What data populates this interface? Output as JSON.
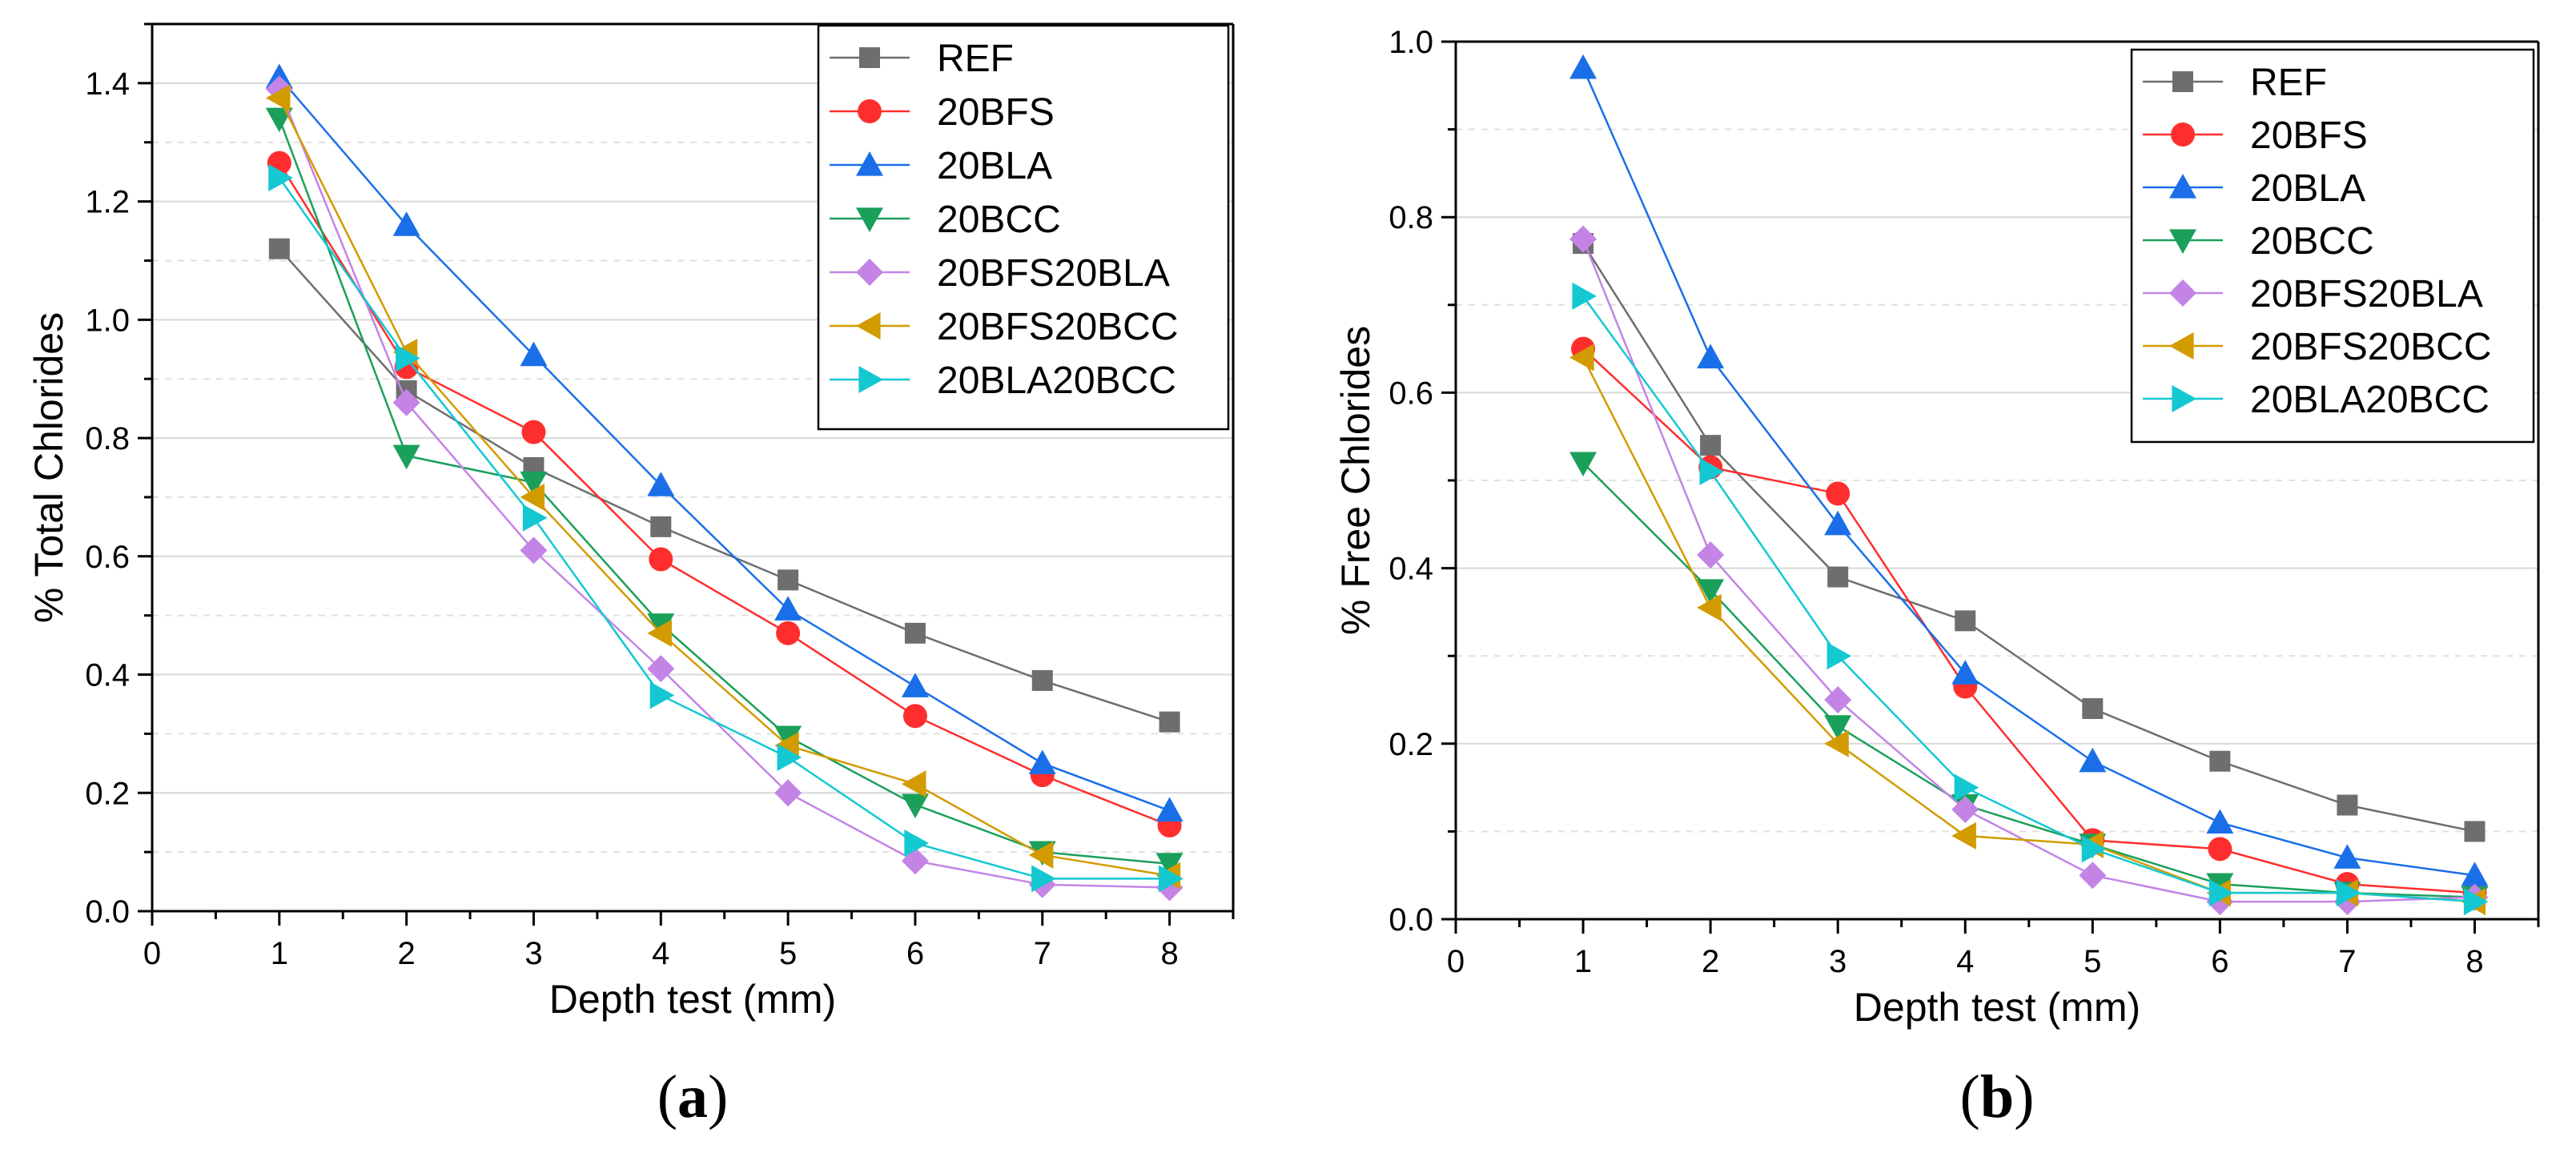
{
  "series_colors": {
    "REF": "#6e6e6e",
    "20BFS": "#ff2e2e",
    "20BLA": "#1a6fe8",
    "20BCC": "#1aa05a",
    "20BFS20BLA": "#c384e6",
    "20BFS20BCC": "#d29b00",
    "20BLA20BCC": "#14c8d2"
  },
  "series_markers": {
    "REF": "square",
    "20BFS": "circle",
    "20BLA": "triangle-up",
    "20BCC": "triangle-down",
    "20BFS20BLA": "diamond",
    "20BFS20BCC": "triangle-left",
    "20BLA20BCC": "triangle-right"
  },
  "chart_data": [
    {
      "type": "line",
      "panel": "a",
      "panel_label_open": "(",
      "panel_label_letter": "a",
      "panel_label_close": ")",
      "xlabel": "Depth test (mm)",
      "ylabel": "% Total Chlorides",
      "xlim": [
        0,
        8.5
      ],
      "ylim": [
        0,
        1.5
      ],
      "xticks": [
        0,
        1,
        2,
        3,
        4,
        5,
        6,
        7,
        8
      ],
      "yticks": [
        0.0,
        0.2,
        0.4,
        0.6,
        0.8,
        1.0,
        1.2,
        1.4
      ],
      "ytick_labels": [
        "0.0",
        "0.2",
        "0.4",
        "0.6",
        "0.8",
        "1.0",
        "1.2",
        "1.4"
      ],
      "legend_position": "top-right",
      "x": [
        1,
        2,
        3,
        4,
        5,
        6,
        7,
        8
      ],
      "series": [
        {
          "name": "REF",
          "values": [
            1.12,
            0.88,
            0.75,
            0.65,
            0.56,
            0.47,
            0.39,
            0.32
          ]
        },
        {
          "name": "20BFS",
          "values": [
            1.265,
            0.92,
            0.81,
            0.595,
            0.47,
            0.33,
            0.23,
            0.145
          ]
        },
        {
          "name": "20BLA",
          "values": [
            1.41,
            1.16,
            0.94,
            0.72,
            0.51,
            0.38,
            0.25,
            0.17
          ]
        },
        {
          "name": "20BCC",
          "values": [
            1.34,
            0.77,
            0.725,
            0.485,
            0.295,
            0.18,
            0.1,
            0.08
          ]
        },
        {
          "name": "20BFS20BLA",
          "values": [
            1.39,
            0.86,
            0.61,
            0.41,
            0.2,
            0.085,
            0.045,
            0.04
          ]
        },
        {
          "name": "20BFS20BCC",
          "values": [
            1.375,
            0.945,
            0.7,
            0.47,
            0.28,
            0.215,
            0.095,
            0.06
          ]
        },
        {
          "name": "20BLA20BCC",
          "values": [
            1.24,
            0.935,
            0.665,
            0.365,
            0.26,
            0.115,
            0.055,
            0.055
          ]
        }
      ]
    },
    {
      "type": "line",
      "panel": "b",
      "panel_label_open": "(",
      "panel_label_letter": "b",
      "panel_label_close": ")",
      "xlabel": "Depth test (mm)",
      "ylabel": "% Free Chlorides",
      "xlim": [
        0,
        8.5
      ],
      "ylim": [
        0,
        1.0
      ],
      "xticks": [
        0,
        1,
        2,
        3,
        4,
        5,
        6,
        7,
        8
      ],
      "yticks": [
        0.0,
        0.2,
        0.4,
        0.6,
        0.8,
        1.0
      ],
      "ytick_labels": [
        "0.0",
        "0.2",
        "0.4",
        "0.6",
        "0.8",
        "1.0"
      ],
      "legend_position": "top-right",
      "x": [
        1,
        2,
        3,
        4,
        5,
        6,
        7,
        8
      ],
      "series": [
        {
          "name": "REF",
          "values": [
            0.77,
            0.54,
            0.39,
            0.34,
            0.24,
            0.18,
            0.13,
            0.1
          ]
        },
        {
          "name": "20BFS",
          "values": [
            0.65,
            0.515,
            0.485,
            0.265,
            0.09,
            0.08,
            0.04,
            0.03
          ]
        },
        {
          "name": "20BLA",
          "values": [
            0.97,
            0.64,
            0.45,
            0.28,
            0.18,
            0.11,
            0.07,
            0.05
          ]
        },
        {
          "name": "20BCC",
          "values": [
            0.52,
            0.375,
            0.22,
            0.13,
            0.085,
            0.04,
            0.03,
            0.025
          ]
        },
        {
          "name": "20BFS20BLA",
          "values": [
            0.775,
            0.415,
            0.25,
            0.125,
            0.05,
            0.02,
            0.02,
            0.025
          ]
        },
        {
          "name": "20BFS20BCC",
          "values": [
            0.64,
            0.355,
            0.2,
            0.095,
            0.085,
            0.03,
            0.03,
            0.02
          ]
        },
        {
          "name": "20BLA20BCC",
          "values": [
            0.71,
            0.51,
            0.3,
            0.15,
            0.08,
            0.03,
            0.03,
            0.02
          ]
        }
      ]
    }
  ]
}
